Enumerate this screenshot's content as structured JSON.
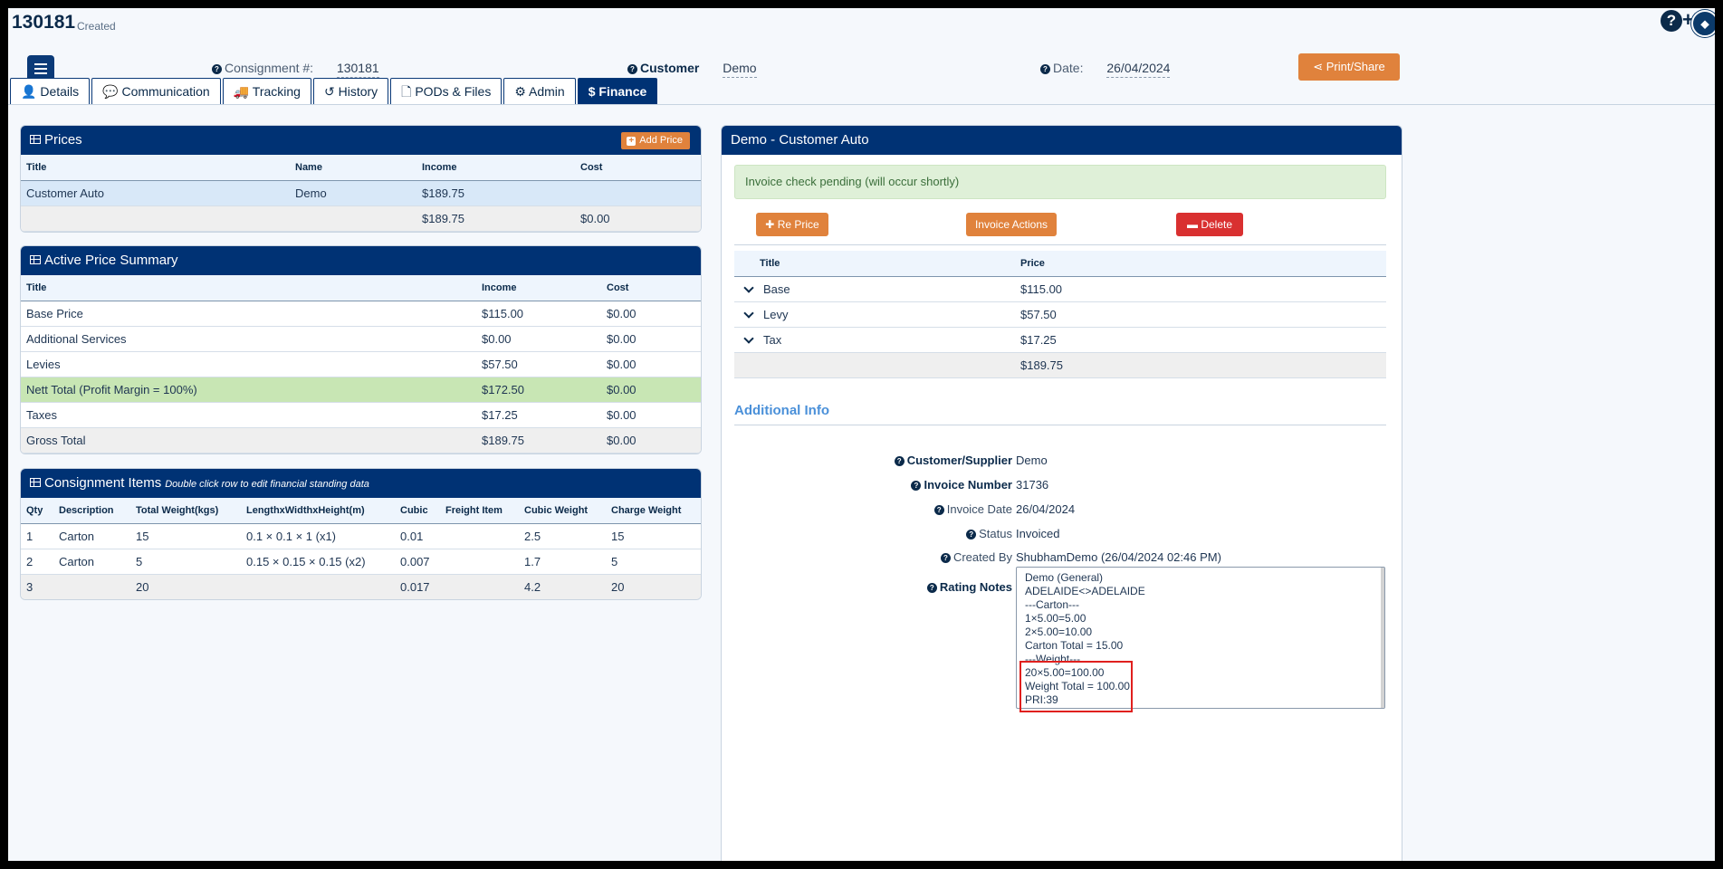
{
  "header": {
    "id": "130181",
    "status": "Created",
    "consignment_label": "Consignment #:",
    "consignment_value": "130181",
    "customer_label": "Customer",
    "customer_value": "Demo",
    "date_label": "Date:",
    "date_value": "26/04/2024",
    "print_label": "Print/Share"
  },
  "top_icons": {
    "help": "help-icon",
    "add": "plus-icon",
    "tag": "tag-icon",
    "plus_symbol": "+"
  },
  "tabs": [
    {
      "label": "Details",
      "icon": "user-icon",
      "glyph": "👤"
    },
    {
      "label": "Communication",
      "icon": "comment-icon",
      "glyph": "💬"
    },
    {
      "label": "Tracking",
      "icon": "truck-icon",
      "glyph": "🚚"
    },
    {
      "label": "History",
      "icon": "history-icon",
      "glyph": "↺"
    },
    {
      "label": "PODs & Files",
      "icon": "file-icon",
      "glyph": "🗋"
    },
    {
      "label": "Admin",
      "icon": "gear-icon",
      "glyph": "⚙"
    },
    {
      "label": "Finance",
      "icon": "dollar-icon",
      "glyph": "$",
      "active": true
    }
  ],
  "prices": {
    "title": "Prices",
    "add_label": "Add Price",
    "headers": [
      "Title",
      "Name",
      "Income",
      "Cost"
    ],
    "rows": [
      [
        "Customer Auto",
        "Demo",
        "$189.75",
        ""
      ]
    ],
    "total": [
      "",
      "",
      "$189.75",
      "$0.00"
    ]
  },
  "summary": {
    "title": "Active Price Summary",
    "headers": [
      "Title",
      "Income",
      "Cost"
    ],
    "rows": [
      [
        "Base Price",
        "$115.00",
        "$0.00"
      ],
      [
        "Additional Services",
        "$0.00",
        "$0.00"
      ],
      [
        "Levies",
        "$57.50",
        "$0.00"
      ],
      [
        "Nett Total (Profit Margin = 100%)",
        "$172.50",
        "$0.00"
      ],
      [
        "Taxes",
        "$17.25",
        "$0.00"
      ],
      [
        "Gross Total",
        "$189.75",
        "$0.00"
      ]
    ]
  },
  "items": {
    "title": "Consignment Items",
    "subtitle": "Double click row to edit financial standing data",
    "headers": [
      "Qty",
      "Description",
      "Total Weight(kgs)",
      "LengthxWidthxHeight(m)",
      "Cubic",
      "Freight Item",
      "Cubic Weight",
      "Charge Weight"
    ],
    "rows": [
      [
        "1",
        "Carton",
        "15",
        "0.1 × 0.1 × 1 (x1)",
        "0.01",
        "",
        "2.5",
        "15"
      ],
      [
        "2",
        "Carton",
        "5",
        "0.15 × 0.15 × 0.15 (x2)",
        "0.007",
        "",
        "1.7",
        "5"
      ]
    ],
    "total": [
      "3",
      "",
      "20",
      "",
      "0.017",
      "",
      "4.2",
      "20"
    ]
  },
  "invoice": {
    "title": "Demo - Customer Auto",
    "alert": "Invoice check pending (will occur shortly)",
    "reprice_label": "Re Price",
    "actions_label": "Invoice Actions",
    "delete_label": "Delete",
    "headers": [
      "Title",
      "Price"
    ],
    "rows": [
      [
        "Base",
        "$115.00"
      ],
      [
        "Levy",
        "$57.50"
      ],
      [
        "Tax",
        "$17.25"
      ]
    ],
    "total": "$189.75"
  },
  "additional": {
    "title": "Additional Info",
    "fields": [
      {
        "label": "Customer/Supplier",
        "value": "Demo"
      },
      {
        "label": "Invoice Number",
        "value": "31736"
      },
      {
        "label": "Invoice Date",
        "value": "26/04/2024"
      },
      {
        "label": "Status",
        "value": "Invoiced"
      },
      {
        "label": "Created By",
        "value": "ShubhamDemo (26/04/2024 02:46 PM)"
      },
      {
        "label": "Rating Notes",
        "value": ""
      }
    ],
    "notes": [
      "Demo (General)",
      "ADELAIDE<>ADELAIDE",
      "---Carton---",
      "1×5.00=5.00",
      "2×5.00=10.00",
      "Carton Total = 15.00",
      "---Weight---",
      "20×5.00=100.00",
      "Weight Total = 100.00",
      "PRI:39"
    ]
  }
}
